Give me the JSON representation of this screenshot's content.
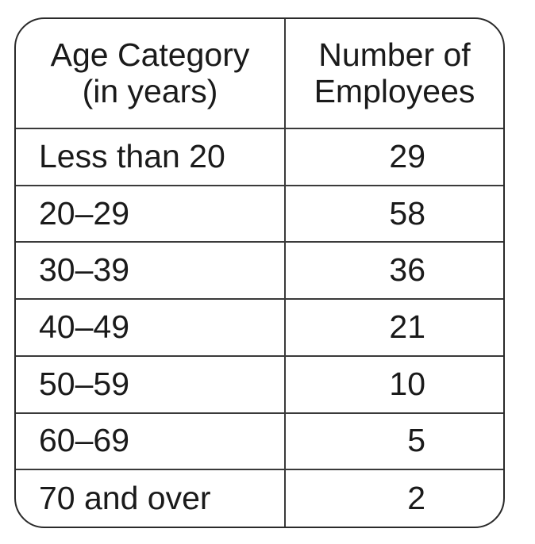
{
  "table": {
    "headers": {
      "age_line1": "Age Category",
      "age_line2": "(in years)",
      "count_line1": "Number of",
      "count_line2": "Employees"
    },
    "rows": [
      {
        "age": "Less than 20",
        "count": "29"
      },
      {
        "age": "20–29",
        "count": "58"
      },
      {
        "age": "30–39",
        "count": "36"
      },
      {
        "age": "40–49",
        "count": "21"
      },
      {
        "age": "50–59",
        "count": "10"
      },
      {
        "age": "60–69",
        "count": "5"
      },
      {
        "age": "70 and over",
        "count": "2"
      }
    ]
  }
}
